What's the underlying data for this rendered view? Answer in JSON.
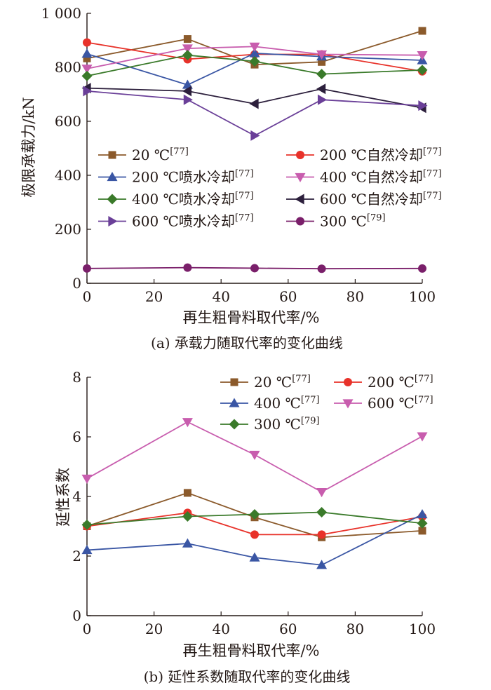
{
  "chart_data": [
    {
      "type": "line",
      "caption": "(a) 承载力随取代率的变化曲线",
      "xlabel": "再生粗骨料取代率/%",
      "ylabel": "极限承载力/kN",
      "xlim": [
        0,
        100
      ],
      "ylim": [
        0,
        1000
      ],
      "xticks": [
        0,
        20,
        40,
        60,
        80,
        100
      ],
      "yticks": [
        0,
        200,
        400,
        600,
        800,
        1000
      ],
      "ytick_labels": [
        "0",
        "200",
        "400",
        "600",
        "800",
        "1 000"
      ],
      "legend_position": "center",
      "series": [
        {
          "name": "20 ℃",
          "ref": "[77]",
          "color": "#8b5a2b",
          "marker": "square",
          "x": [
            0,
            30,
            50,
            70,
            100
          ],
          "y": [
            833,
            905,
            810,
            820,
            935
          ]
        },
        {
          "name": "200 ℃自然冷却",
          "ref": "[77]",
          "color": "#e8322a",
          "marker": "circle",
          "x": [
            0,
            30,
            50,
            70,
            100
          ],
          "y": [
            892,
            830,
            848,
            848,
            785
          ]
        },
        {
          "name": "200 ℃喷水冷却",
          "ref": "[77]",
          "color": "#3a56a4",
          "marker": "triangle-up",
          "x": [
            0,
            30,
            50,
            70,
            100
          ],
          "y": [
            850,
            735,
            852,
            840,
            826
          ]
        },
        {
          "name": "400 ℃自然冷却",
          "ref": "[77]",
          "color": "#c85dae",
          "marker": "triangle-down",
          "x": [
            0,
            30,
            50,
            70,
            100
          ],
          "y": [
            795,
            870,
            877,
            848,
            845
          ]
        },
        {
          "name": "400 ℃喷水冷却",
          "ref": "[77]",
          "color": "#3a7a2a",
          "marker": "diamond",
          "x": [
            0,
            30,
            50,
            70,
            100
          ],
          "y": [
            768,
            845,
            822,
            775,
            790
          ]
        },
        {
          "name": "600 ℃自然冷却",
          "ref": "[77]",
          "color": "#2c1f3c",
          "marker": "triangle-left",
          "x": [
            0,
            30,
            50,
            70,
            100
          ],
          "y": [
            723,
            712,
            665,
            720,
            650
          ]
        },
        {
          "name": "600 ℃喷水冷却",
          "ref": "[77]",
          "color": "#6a3f98",
          "marker": "triangle-right",
          "x": [
            0,
            30,
            50,
            70,
            100
          ],
          "y": [
            712,
            680,
            547,
            680,
            658
          ]
        },
        {
          "name": "300 ℃",
          "ref": "[79]",
          "color": "#7a1f6a",
          "marker": "circle",
          "x": [
            0,
            30,
            50,
            70,
            100
          ],
          "y": [
            55,
            58,
            56,
            54,
            55
          ]
        }
      ]
    },
    {
      "type": "line",
      "caption": "(b) 延性系数随取代率的变化曲线",
      "xlabel": "再生粗骨料取代率/%",
      "ylabel": "延性系数",
      "xlim": [
        0,
        100
      ],
      "ylim": [
        0,
        8
      ],
      "xticks": [
        0,
        20,
        40,
        60,
        80,
        100
      ],
      "yticks": [
        0,
        2,
        4,
        6,
        8
      ],
      "ytick_labels": [
        "0",
        "2",
        "4",
        "6",
        "8"
      ],
      "legend_position": "top",
      "series": [
        {
          "name": "20 ℃",
          "ref": "[77]",
          "color": "#8b5a2b",
          "marker": "square",
          "x": [
            0,
            30,
            50,
            70,
            100
          ],
          "y": [
            3.0,
            4.12,
            3.3,
            2.63,
            2.85
          ]
        },
        {
          "name": "200 ℃",
          "ref": "[77]",
          "color": "#e8322a",
          "marker": "circle",
          "x": [
            0,
            30,
            50,
            70,
            100
          ],
          "y": [
            3.0,
            3.45,
            2.72,
            2.72,
            3.32
          ]
        },
        {
          "name": "400 ℃",
          "ref": "[77]",
          "color": "#3a56a4",
          "marker": "triangle-up",
          "x": [
            0,
            30,
            50,
            70,
            100
          ],
          "y": [
            2.2,
            2.42,
            1.95,
            1.7,
            3.4
          ]
        },
        {
          "name": "600 ℃",
          "ref": "[77]",
          "color": "#c85dae",
          "marker": "triangle-down",
          "x": [
            0,
            30,
            50,
            70,
            100
          ],
          "y": [
            4.6,
            6.5,
            5.4,
            4.15,
            6.02
          ]
        },
        {
          "name": "300 ℃",
          "ref": "[79]",
          "color": "#3a7a2a",
          "marker": "diamond",
          "x": [
            0,
            30,
            50,
            70,
            100
          ],
          "y": [
            3.05,
            3.33,
            3.4,
            3.47,
            3.1
          ]
        }
      ]
    }
  ]
}
